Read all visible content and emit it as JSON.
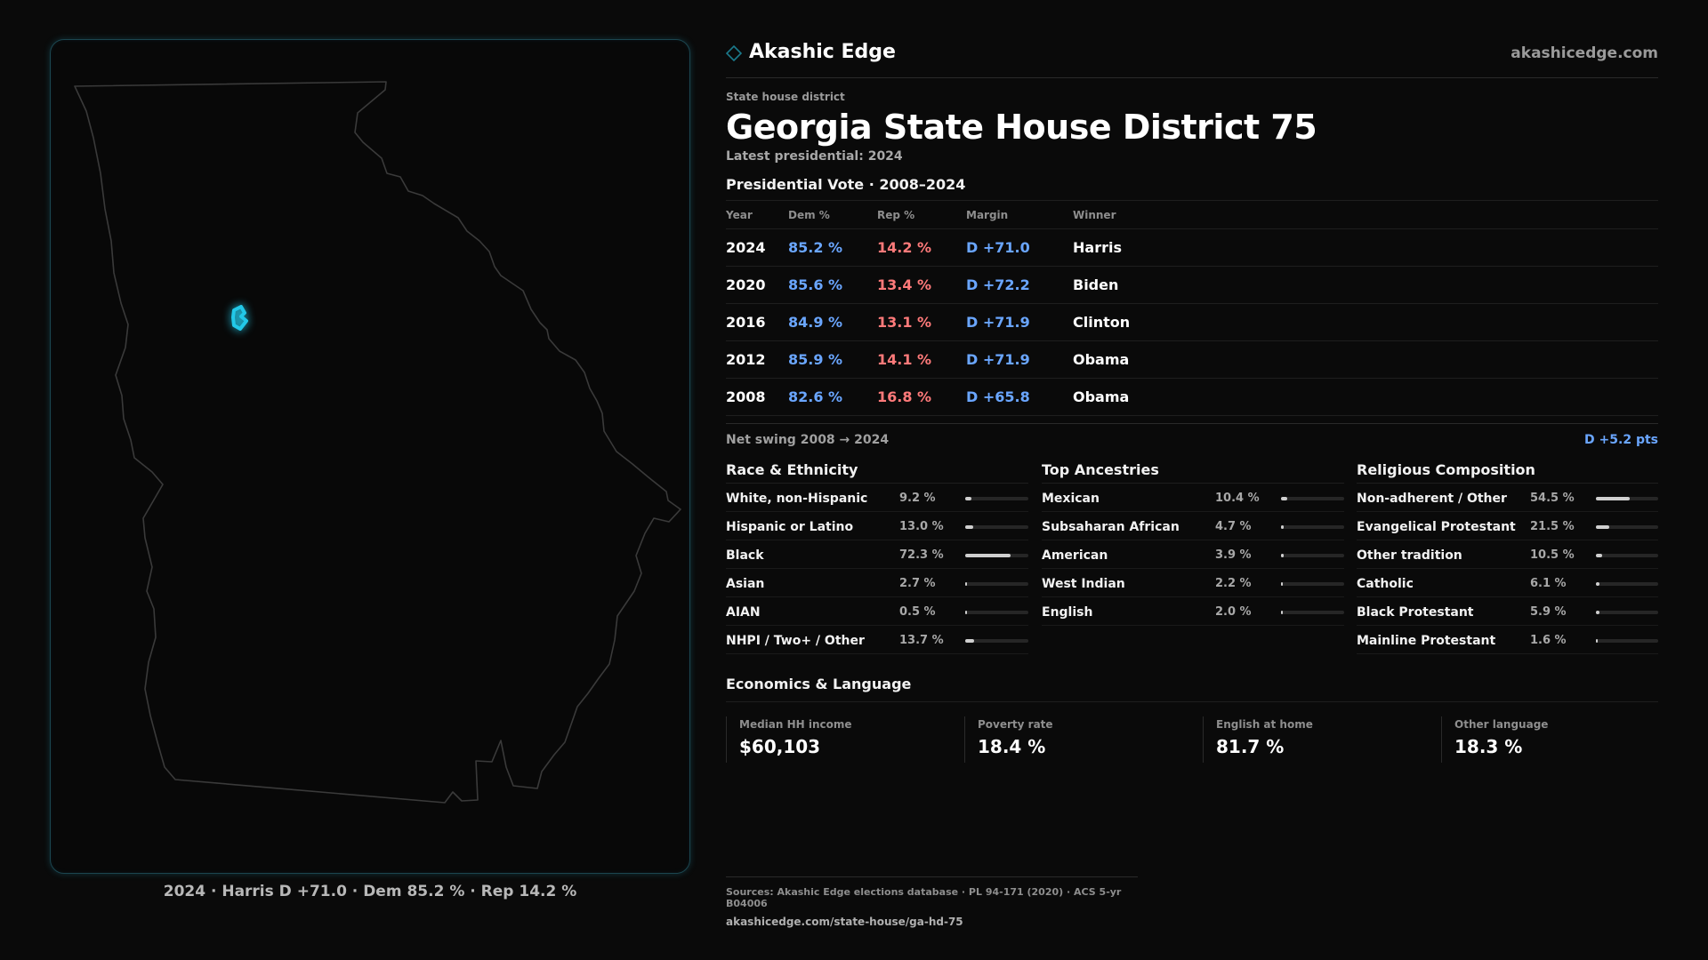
{
  "brand": {
    "name": "Akashic Edge",
    "url": "akashicedge.com",
    "accent": "#1b7a8c"
  },
  "header": {
    "kicker": "State house district",
    "title": "Georgia State House District 75",
    "latest": "Latest presidential: 2024"
  },
  "presidential": {
    "title": "Presidential Vote · 2008–2024",
    "columns": {
      "year": "Year",
      "dem": "Dem %",
      "rep": "Rep %",
      "margin": "Margin",
      "winner": "Winner"
    },
    "rows": [
      {
        "year": "2024",
        "dem": "85.2 %",
        "rep": "14.2 %",
        "margin": "D +71.0",
        "winner": "Harris"
      },
      {
        "year": "2020",
        "dem": "85.6 %",
        "rep": "13.4 %",
        "margin": "D +72.2",
        "winner": "Biden"
      },
      {
        "year": "2016",
        "dem": "84.9 %",
        "rep": "13.1 %",
        "margin": "D +71.9",
        "winner": "Clinton"
      },
      {
        "year": "2012",
        "dem": "85.9 %",
        "rep": "14.1 %",
        "margin": "D +71.9",
        "winner": "Obama"
      },
      {
        "year": "2008",
        "dem": "82.6 %",
        "rep": "16.8 %",
        "margin": "D +65.8",
        "winner": "Obama"
      }
    ],
    "swing_label": "Net swing 2008 → 2024",
    "swing_value": "D +5.2 pts"
  },
  "race": {
    "title": "Race & Ethnicity",
    "items": [
      {
        "label": "White, non-Hispanic",
        "value": "9.2 %",
        "pct": 9.2
      },
      {
        "label": "Hispanic or Latino",
        "value": "13.0 %",
        "pct": 13.0
      },
      {
        "label": "Black",
        "value": "72.3 %",
        "pct": 72.3
      },
      {
        "label": "Asian",
        "value": "2.7 %",
        "pct": 2.7
      },
      {
        "label": "AIAN",
        "value": "0.5 %",
        "pct": 0.5
      },
      {
        "label": "NHPI / Two+ / Other",
        "value": "13.7 %",
        "pct": 13.7
      }
    ]
  },
  "ancestry": {
    "title": "Top Ancestries",
    "items": [
      {
        "label": "Mexican",
        "value": "10.4 %",
        "pct": 10.4
      },
      {
        "label": "Subsaharan African",
        "value": "4.7 %",
        "pct": 4.7
      },
      {
        "label": "American",
        "value": "3.9 %",
        "pct": 3.9
      },
      {
        "label": "West Indian",
        "value": "2.2 %",
        "pct": 2.2
      },
      {
        "label": "English",
        "value": "2.0 %",
        "pct": 2.0
      }
    ]
  },
  "religion": {
    "title": "Religious Composition",
    "items": [
      {
        "label": "Non-adherent / Other",
        "value": "54.5 %",
        "pct": 54.5
      },
      {
        "label": "Evangelical Protestant",
        "value": "21.5 %",
        "pct": 21.5
      },
      {
        "label": "Other tradition",
        "value": "10.5 %",
        "pct": 10.5
      },
      {
        "label": "Catholic",
        "value": "6.1 %",
        "pct": 6.1
      },
      {
        "label": "Black Protestant",
        "value": "5.9 %",
        "pct": 5.9
      },
      {
        "label": "Mainline Protestant",
        "value": "1.6 %",
        "pct": 1.6
      }
    ]
  },
  "economics": {
    "title": "Economics & Language",
    "items": [
      {
        "label": "Median HH income",
        "value": "$60,103"
      },
      {
        "label": "Poverty rate",
        "value": "18.4 %"
      },
      {
        "label": "English at home",
        "value": "81.7 %"
      },
      {
        "label": "Other language",
        "value": "18.3 %"
      }
    ]
  },
  "map": {
    "caption": "2024 · Harris D +71.0 · Dem 85.2 % · Rep 14.2 %",
    "outline_color": "#3a3a3a",
    "district_color": "#22c8e8"
  },
  "sources": {
    "line1": "Sources: Akashic Edge elections database · PL 94-171 (2020) · ACS 5-yr B04006",
    "line2": "akashicedge.com/state-house/ga-hd-75"
  }
}
